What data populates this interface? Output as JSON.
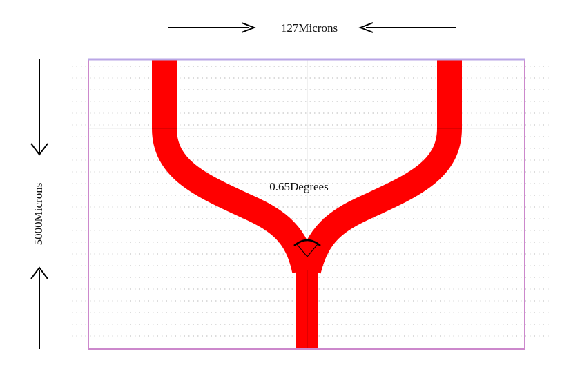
{
  "labels": {
    "width_label": "127Microns",
    "length_label": "5000Microns",
    "angle_label": "0.65Degrees"
  },
  "colors": {
    "waveguide": "#ff0000",
    "boundary": "#cc88cc",
    "boundary_top": "#b9a6e6",
    "grid_dots": "#c8c8c8",
    "arrow": "#000000"
  },
  "icons": {
    "width_arrows": "arrow-right-icon / arrow-left-icon",
    "length_arrows": "arrow-down-icon / arrow-up-icon",
    "angle_marker": "arc-icon"
  }
}
